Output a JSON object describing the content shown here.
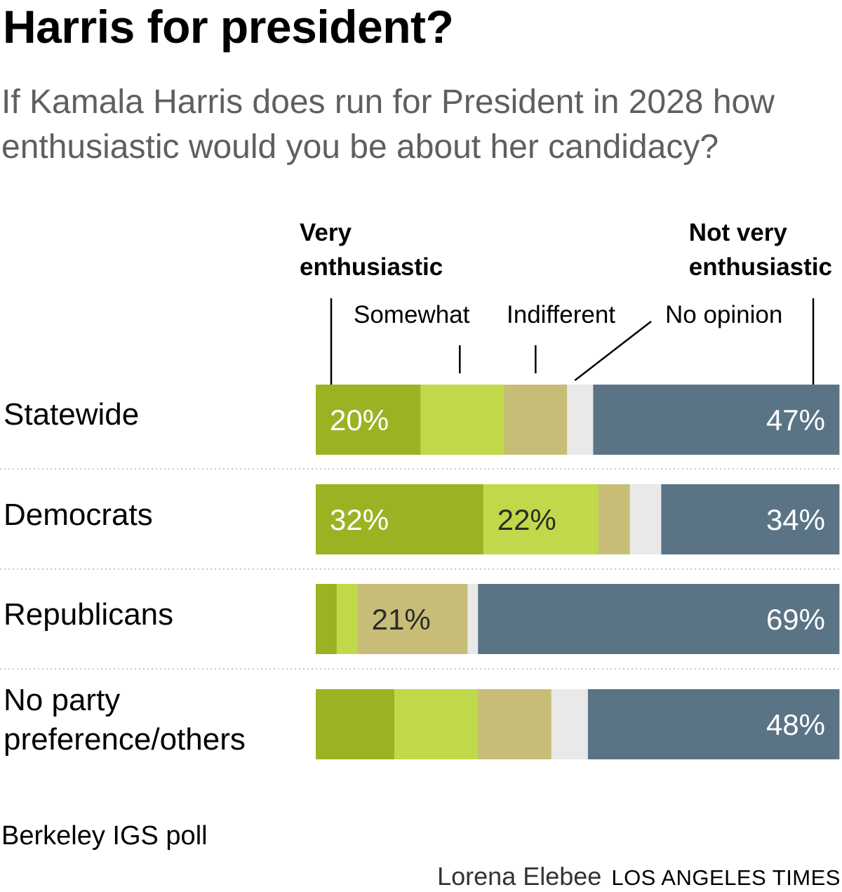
{
  "title": "Harris for president?",
  "subtitle": "If Kamala Harris does run for President in 2028 how enthusiastic would you be about her candidacy?",
  "source": "Berkeley IGS poll",
  "credit": {
    "author": "Lorena Elebee",
    "organization": "LOS ANGELES TIMES"
  },
  "chart_data": {
    "type": "bar",
    "orientation": "horizontal",
    "stacked": true,
    "unit": "%",
    "annotations": {
      "very_enthusiastic": [
        "Very",
        "enthusiastic"
      ],
      "somewhat": "Somewhat",
      "indifferent": "Indifferent",
      "no_opinion": "No opinion",
      "not_very_enthusiastic": [
        "Not very",
        "enthusiastic"
      ]
    },
    "series_colors": [
      "#9bb323",
      "#c0d94a",
      "#c8bd77",
      "#e9e9e9",
      "#5a7486"
    ],
    "series_names": [
      "Very enthusiastic",
      "Somewhat",
      "Indifferent",
      "No opinion",
      "Not very enthusiastic"
    ],
    "rows": [
      {
        "label": [
          "Statewide"
        ],
        "values": [
          20,
          16,
          12,
          5,
          47
        ],
        "labels": [
          "20%",
          "",
          "",
          "",
          "47%"
        ]
      },
      {
        "label": [
          "Democrats"
        ],
        "values": [
          32,
          22,
          6,
          6,
          34
        ],
        "labels": [
          "32%",
          "22%",
          "",
          "",
          "34%"
        ]
      },
      {
        "label": [
          "Republicans"
        ],
        "values": [
          4,
          4,
          21,
          2,
          69
        ],
        "labels": [
          "",
          "",
          "21%",
          "",
          "69%"
        ]
      },
      {
        "label": [
          "No party",
          "preference/others"
        ],
        "values": [
          15,
          16,
          14,
          7,
          48
        ],
        "labels": [
          "",
          "",
          "",
          "",
          "48%"
        ]
      }
    ]
  }
}
